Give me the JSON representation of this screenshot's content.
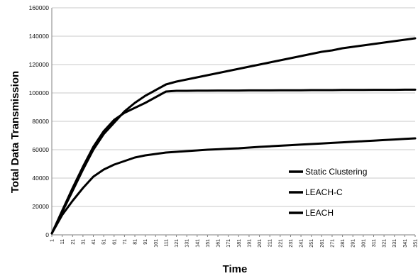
{
  "chart_data": {
    "type": "line",
    "title": "",
    "xlabel": "Time",
    "ylabel": "Total Data Transmission",
    "x": [
      1,
      11,
      21,
      31,
      41,
      51,
      61,
      71,
      81,
      91,
      101,
      111,
      121,
      131,
      141,
      151,
      161,
      171,
      181,
      191,
      201,
      211,
      221,
      231,
      241,
      251,
      261,
      271,
      281,
      291,
      301,
      311,
      321,
      331,
      341,
      351
    ],
    "ylim": [
      0,
      160000
    ],
    "xlim": [
      1,
      351
    ],
    "yticks": [
      "0",
      "20000",
      "40000",
      "60000",
      "80000",
      "100000",
      "120000",
      "140000",
      "160000"
    ],
    "grid": true,
    "legend_position": "bottom-right",
    "series": [
      {
        "name": "Static Clustering",
        "values": [
          1000,
          17000,
          33000,
          48000,
          62000,
          73000,
          81000,
          86000,
          89500,
          93000,
          97000,
          101000,
          101500,
          101500,
          101600,
          101600,
          101700,
          101700,
          101700,
          101800,
          101800,
          101800,
          101900,
          101900,
          101900,
          102000,
          102000,
          102000,
          102100,
          102100,
          102100,
          102200,
          102200,
          102200,
          102300,
          102300
        ]
      },
      {
        "name": "LEACH-C",
        "values": [
          1000,
          16000,
          31000,
          46000,
          60000,
          71000,
          79000,
          87000,
          93000,
          98000,
          102000,
          106000,
          108000,
          109500,
          111000,
          112500,
          114000,
          115500,
          117000,
          118500,
          120000,
          121500,
          123000,
          124500,
          126000,
          127500,
          129000,
          130000,
          131500,
          132500,
          133500,
          134500,
          135500,
          136500,
          137500,
          138500
        ]
      },
      {
        "name": "LEACH",
        "values": [
          1000,
          14000,
          24000,
          33000,
          41000,
          46000,
          49500,
          52000,
          54500,
          56000,
          57000,
          58000,
          58500,
          59000,
          59500,
          60000,
          60300,
          60700,
          61000,
          61500,
          62000,
          62400,
          62800,
          63200,
          63600,
          64000,
          64400,
          64800,
          65200,
          65600,
          66000,
          66400,
          66800,
          67200,
          67600,
          68000
        ]
      }
    ],
    "colors": {
      "line": "#000000",
      "grid": "#c8c8c8",
      "axis": "#808080"
    }
  }
}
